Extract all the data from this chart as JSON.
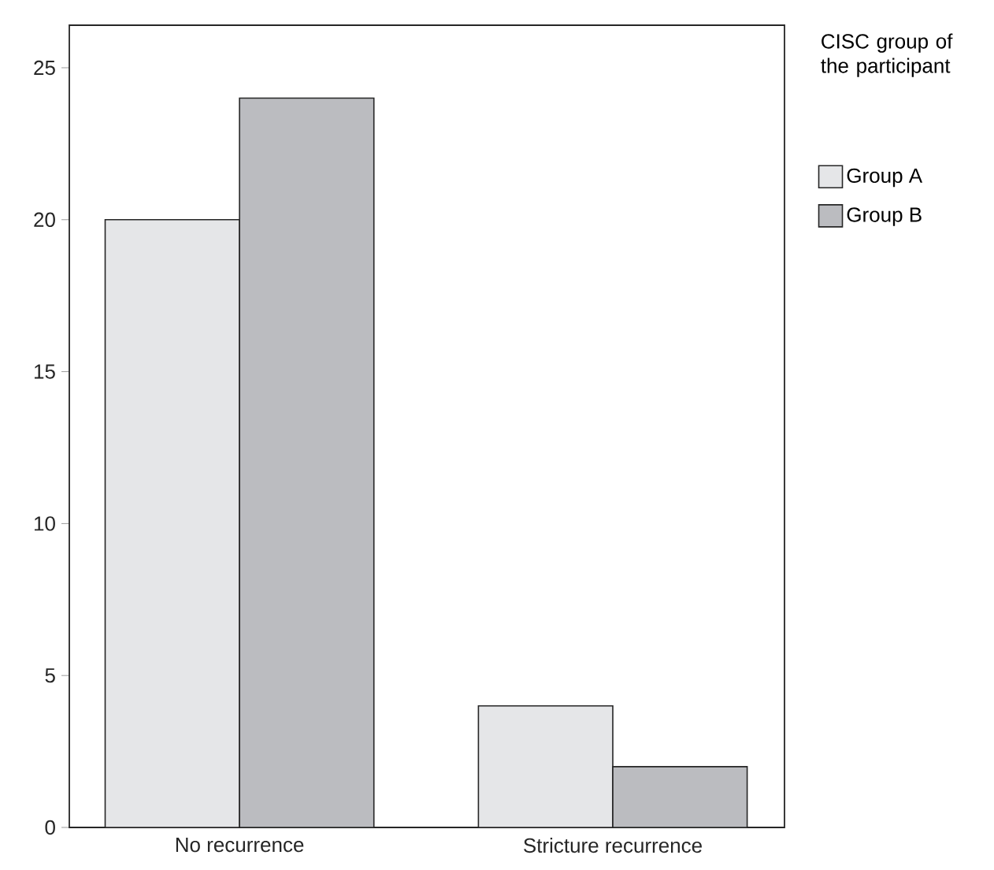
{
  "chart_data": {
    "type": "bar",
    "legend_title": "CISC group of the participant",
    "categories": [
      "No recurrence",
      "Stricture recurrence"
    ],
    "series": [
      {
        "name": "Group A",
        "color": "#e5e6e8",
        "values": [
          20,
          4
        ]
      },
      {
        "name": "Group B",
        "color": "#bbbcc0",
        "values": [
          24,
          2
        ]
      }
    ],
    "ylim": [
      0,
      26.4
    ],
    "yticks": [
      0,
      5,
      10,
      15,
      20,
      25
    ],
    "grid": false,
    "legend": "right"
  }
}
